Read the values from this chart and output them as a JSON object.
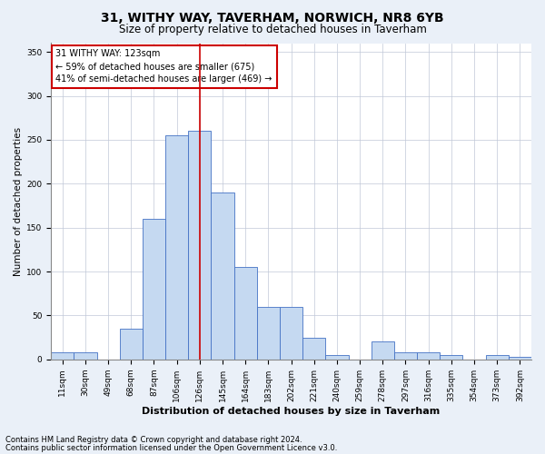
{
  "title": "31, WITHY WAY, TAVERHAM, NORWICH, NR8 6YB",
  "subtitle": "Size of property relative to detached houses in Taverham",
  "xlabel": "Distribution of detached houses by size in Taverham",
  "ylabel": "Number of detached properties",
  "bin_labels": [
    "11sqm",
    "30sqm",
    "49sqm",
    "68sqm",
    "87sqm",
    "106sqm",
    "126sqm",
    "145sqm",
    "164sqm",
    "183sqm",
    "202sqm",
    "221sqm",
    "240sqm",
    "259sqm",
    "278sqm",
    "297sqm",
    "316sqm",
    "335sqm",
    "354sqm",
    "373sqm",
    "392sqm"
  ],
  "bar_heights": [
    8,
    8,
    0,
    35,
    160,
    255,
    260,
    190,
    105,
    60,
    60,
    25,
    5,
    0,
    20,
    8,
    8,
    5,
    0,
    5,
    3
  ],
  "bar_color": "#c5d9f1",
  "bar_edge_color": "#4472c4",
  "vline_x": 6.0,
  "vline_color": "#cc0000",
  "annotation_text": "31 WITHY WAY: 123sqm\n← 59% of detached houses are smaller (675)\n41% of semi-detached houses are larger (469) →",
  "annotation_box_color": "#ffffff",
  "annotation_box_edge_color": "#cc0000",
  "ylim": [
    0,
    360
  ],
  "yticks": [
    0,
    50,
    100,
    150,
    200,
    250,
    300,
    350
  ],
  "footer1": "Contains HM Land Registry data © Crown copyright and database right 2024.",
  "footer2": "Contains public sector information licensed under the Open Government Licence v3.0.",
  "bg_color": "#eaf0f8",
  "plot_bg_color": "#ffffff",
  "title_fontsize": 10,
  "subtitle_fontsize": 8.5,
  "ylabel_fontsize": 7.5,
  "xlabel_fontsize": 8,
  "tick_fontsize": 6.5,
  "annotation_fontsize": 7,
  "footer_fontsize": 6
}
